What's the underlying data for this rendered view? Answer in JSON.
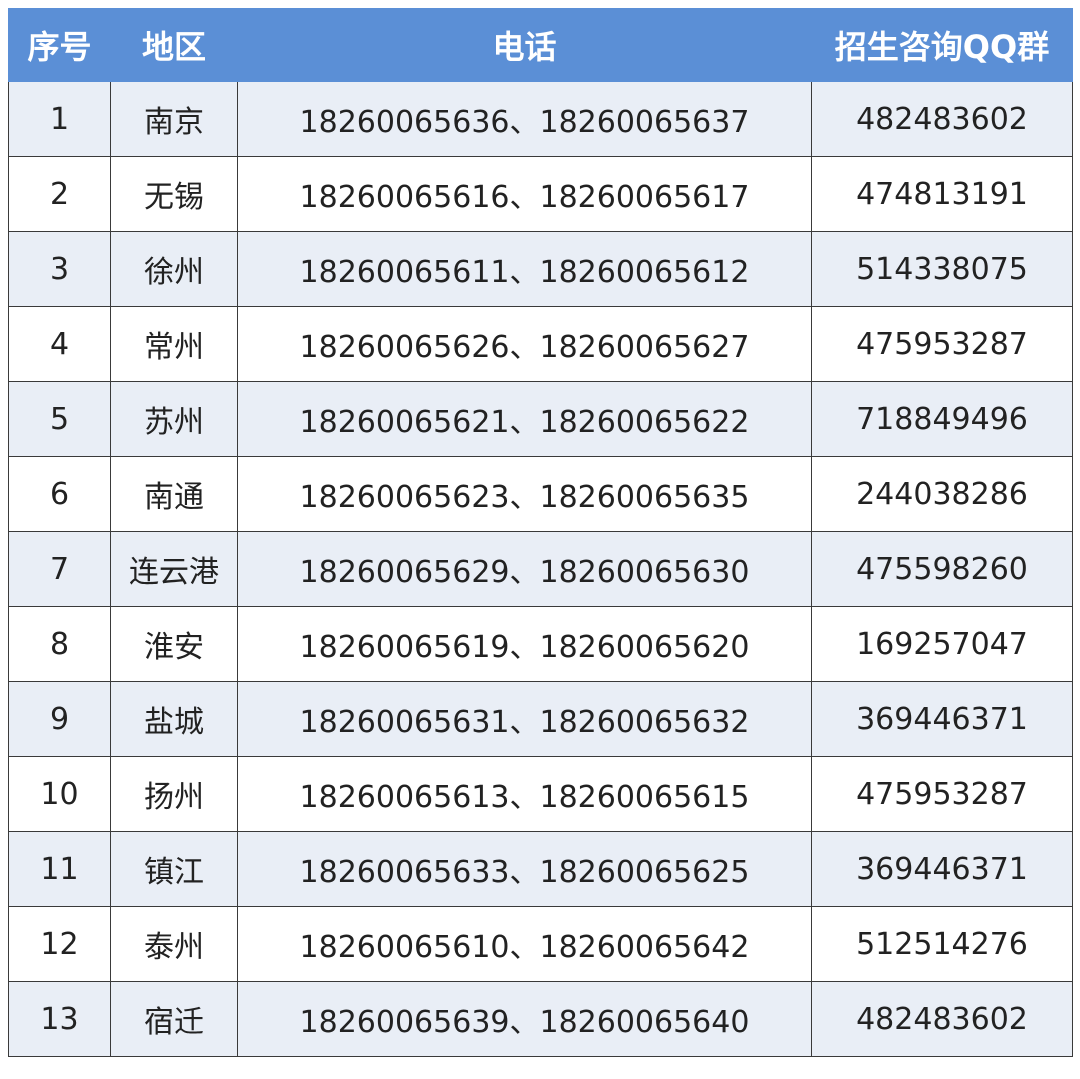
{
  "table": {
    "header": [
      "序号",
      "地区",
      "电话",
      "招生咨询QQ群"
    ],
    "rows": [
      [
        "1",
        "南京",
        "18260065636、18260065637",
        "482483602"
      ],
      [
        "2",
        "无锡",
        "18260065616、18260065617",
        "474813191"
      ],
      [
        "3",
        "徐州",
        "18260065611、18260065612",
        "514338075"
      ],
      [
        "4",
        "常州",
        "18260065626、18260065627",
        "475953287"
      ],
      [
        "5",
        "苏州",
        "18260065621、18260065622",
        "718849496"
      ],
      [
        "6",
        "南通",
        "18260065623、18260065635",
        "244038286"
      ],
      [
        "7",
        "连云港",
        "18260065629、18260065630",
        "475598260"
      ],
      [
        "8",
        "淮安",
        "18260065619、18260065620",
        "169257047"
      ],
      [
        "9",
        "盐城",
        "18260065631、18260065632",
        "369446371"
      ],
      [
        "10",
        "扬州",
        "18260065613、18260065615",
        "475953287"
      ],
      [
        "11",
        "镇江",
        "18260065633、18260065625",
        "369446371"
      ],
      [
        "12",
        "泰州",
        "18260065610、18260065642",
        "512514276"
      ],
      [
        "13",
        "宿迁",
        "18260065639、18260065640",
        "482483602"
      ]
    ]
  }
}
